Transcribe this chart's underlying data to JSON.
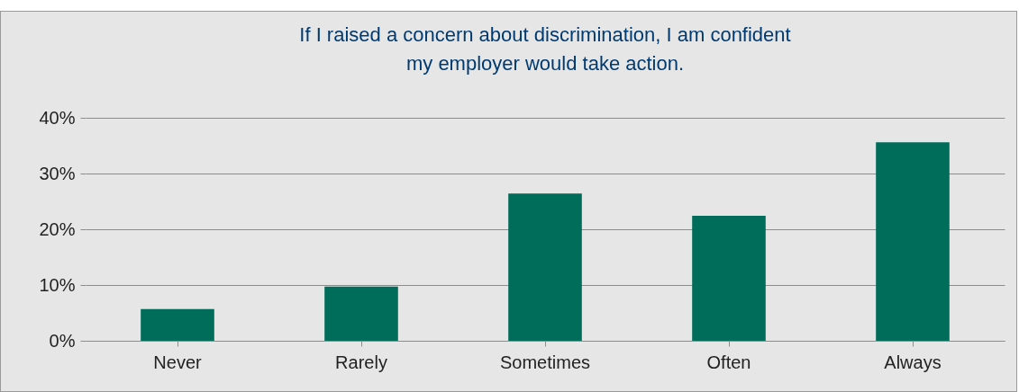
{
  "chart_data": {
    "type": "bar",
    "title": "If I raised a concern about discrimination, I am confident\nmy employer would take action.",
    "categories": [
      "Never",
      "Rarely",
      "Sometimes",
      "Often",
      "Always"
    ],
    "values": [
      5.7,
      9.7,
      26.4,
      22.4,
      35.6
    ],
    "color": "#006d5b",
    "ylim": [
      0,
      40
    ],
    "yticks": [
      {
        "value": 0,
        "label": "0%"
      },
      {
        "value": 10,
        "label": "10%"
      },
      {
        "value": 20,
        "label": "20%"
      },
      {
        "value": 30,
        "label": "30%"
      },
      {
        "value": 40,
        "label": "40%"
      }
    ],
    "grid": "y"
  }
}
